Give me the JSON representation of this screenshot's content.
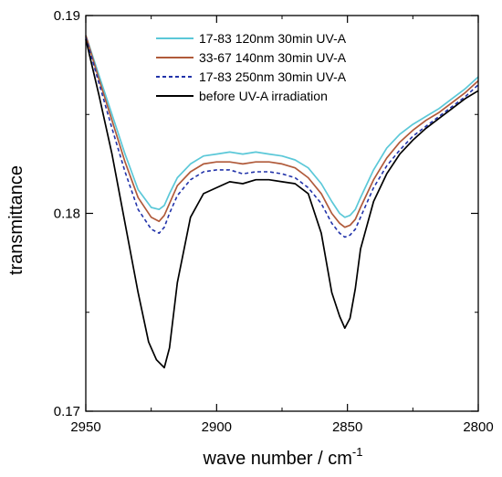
{
  "chart_data": {
    "type": "line",
    "xlabel": "wave number / cm",
    "xlabel_superscript": "-1",
    "ylabel": "transmittance",
    "xlim": [
      2950,
      2800
    ],
    "ylim": [
      0.17,
      0.19
    ],
    "x_reversed": true,
    "x_ticks": [
      "2950",
      "2900",
      "2850",
      "2800"
    ],
    "y_ticks": [
      "0.17",
      "0.18",
      "0.19"
    ],
    "x_tick_values": [
      2950,
      2900,
      2850,
      2800
    ],
    "y_tick_values": [
      0.17,
      0.18,
      0.19
    ],
    "legend_position": "top-right",
    "series": [
      {
        "name": "17-83 120nm 30min UV-A",
        "color": "#5bc8d8",
        "dash": "solid",
        "x": [
          2950,
          2945,
          2940,
          2935,
          2930,
          2925,
          2922,
          2920,
          2918,
          2915,
          2910,
          2905,
          2900,
          2895,
          2890,
          2885,
          2880,
          2875,
          2870,
          2865,
          2860,
          2856,
          2853,
          2851,
          2849,
          2847,
          2845,
          2840,
          2835,
          2830,
          2825,
          2820,
          2815,
          2810,
          2805,
          2800
        ],
        "y": [
          0.189,
          0.187,
          0.185,
          0.183,
          0.1812,
          0.1803,
          0.1802,
          0.1804,
          0.181,
          0.1818,
          0.1825,
          0.1829,
          0.183,
          0.1831,
          0.183,
          0.1831,
          0.183,
          0.1829,
          0.1827,
          0.1823,
          0.1815,
          0.1806,
          0.18,
          0.1798,
          0.1799,
          0.1802,
          0.1808,
          0.1822,
          0.1833,
          0.184,
          0.1845,
          0.1849,
          0.1853,
          0.1858,
          0.1863,
          0.1869
        ]
      },
      {
        "name": "33-67 140nm 30min UV-A",
        "color": "#b05a3a",
        "dash": "solid",
        "x": [
          2950,
          2945,
          2940,
          2935,
          2930,
          2925,
          2922,
          2920,
          2918,
          2915,
          2910,
          2905,
          2900,
          2895,
          2890,
          2885,
          2880,
          2875,
          2870,
          2865,
          2860,
          2856,
          2853,
          2851,
          2849,
          2847,
          2845,
          2840,
          2835,
          2830,
          2825,
          2820,
          2815,
          2810,
          2805,
          2800
        ],
        "y": [
          0.189,
          0.1868,
          0.1847,
          0.1826,
          0.1808,
          0.1798,
          0.1796,
          0.1799,
          0.1805,
          0.1814,
          0.1821,
          0.1825,
          0.1826,
          0.1826,
          0.1825,
          0.1826,
          0.1826,
          0.1825,
          0.1823,
          0.1818,
          0.181,
          0.18,
          0.1795,
          0.1793,
          0.1794,
          0.1797,
          0.1803,
          0.1817,
          0.1828,
          0.1836,
          0.1842,
          0.1847,
          0.1851,
          0.1856,
          0.1861,
          0.1867
        ]
      },
      {
        "name": "17-83 250nm 30min UV-A",
        "color": "#2233aa",
        "dash": "dashed",
        "x": [
          2950,
          2945,
          2940,
          2935,
          2930,
          2925,
          2922,
          2920,
          2918,
          2915,
          2910,
          2905,
          2900,
          2895,
          2890,
          2885,
          2880,
          2875,
          2870,
          2865,
          2860,
          2856,
          2853,
          2851,
          2849,
          2847,
          2845,
          2840,
          2835,
          2830,
          2825,
          2820,
          2815,
          2810,
          2805,
          2800
        ],
        "y": [
          0.1889,
          0.1866,
          0.1843,
          0.1821,
          0.1802,
          0.1792,
          0.179,
          0.1793,
          0.18,
          0.1809,
          0.1817,
          0.1821,
          0.1822,
          0.1822,
          0.182,
          0.1821,
          0.1821,
          0.182,
          0.1818,
          0.1813,
          0.1805,
          0.1795,
          0.179,
          0.1788,
          0.1789,
          0.1792,
          0.1798,
          0.1813,
          0.1824,
          0.1832,
          0.1839,
          0.1844,
          0.1849,
          0.1854,
          0.1859,
          0.1865
        ]
      },
      {
        "name": "before UV-A  irradiation",
        "color": "#000000",
        "dash": "solid",
        "x": [
          2950,
          2945,
          2940,
          2935,
          2930,
          2926,
          2923,
          2920,
          2918,
          2915,
          2910,
          2905,
          2900,
          2895,
          2890,
          2885,
          2880,
          2875,
          2870,
          2865,
          2860,
          2856,
          2853,
          2851,
          2849,
          2847,
          2845,
          2840,
          2835,
          2830,
          2825,
          2820,
          2815,
          2810,
          2805,
          2800
        ],
        "y": [
          0.1888,
          0.186,
          0.183,
          0.1795,
          0.176,
          0.1735,
          0.1726,
          0.1722,
          0.1732,
          0.1765,
          0.1798,
          0.181,
          0.1813,
          0.1816,
          0.1815,
          0.1817,
          0.1817,
          0.1816,
          0.1815,
          0.181,
          0.179,
          0.176,
          0.1748,
          0.1742,
          0.1747,
          0.1762,
          0.1782,
          0.1806,
          0.182,
          0.183,
          0.1837,
          0.1843,
          0.1848,
          0.1853,
          0.1858,
          0.1862
        ]
      }
    ]
  }
}
